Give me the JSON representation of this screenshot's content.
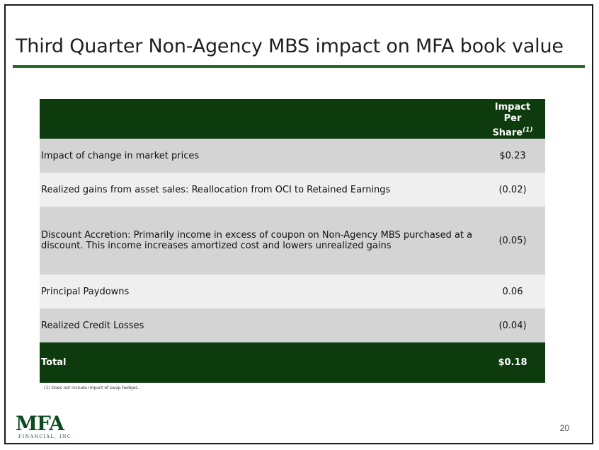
{
  "title": "Third Quarter Non-Agency MBS impact on MFA book value",
  "table": {
    "header_line1": "Impact",
    "header_line2": "Per Share",
    "header_note": "(1)",
    "rows": [
      {
        "label": "Impact of change in market prices",
        "value": "$0.23"
      },
      {
        "label": "Realized gains from asset sales: Reallocation from OCI to Retained Earnings",
        "value": "(0.02)"
      },
      {
        "label": "Discount Accretion: Primarily income in excess of coupon on Non-Agency MBS purchased at a discount. This income increases amortized cost and lowers unrealized gains",
        "value": "(0.05)"
      },
      {
        "label": "Principal Paydowns",
        "value": "0.06"
      },
      {
        "label": "Realized Credit Losses",
        "value": "(0.04)"
      }
    ],
    "total_label": "Total",
    "total_value": "$0.18"
  },
  "footnote": "(1) Does not include impact of swap hedges.",
  "page_number": "20",
  "logo": {
    "main": "MFA",
    "sub": "FINANCIAL, INC."
  },
  "colors": {
    "accent_green": "#2a6a2a",
    "table_dark_green": "#0d3b0d",
    "logo_green": "#0d4a1f"
  }
}
